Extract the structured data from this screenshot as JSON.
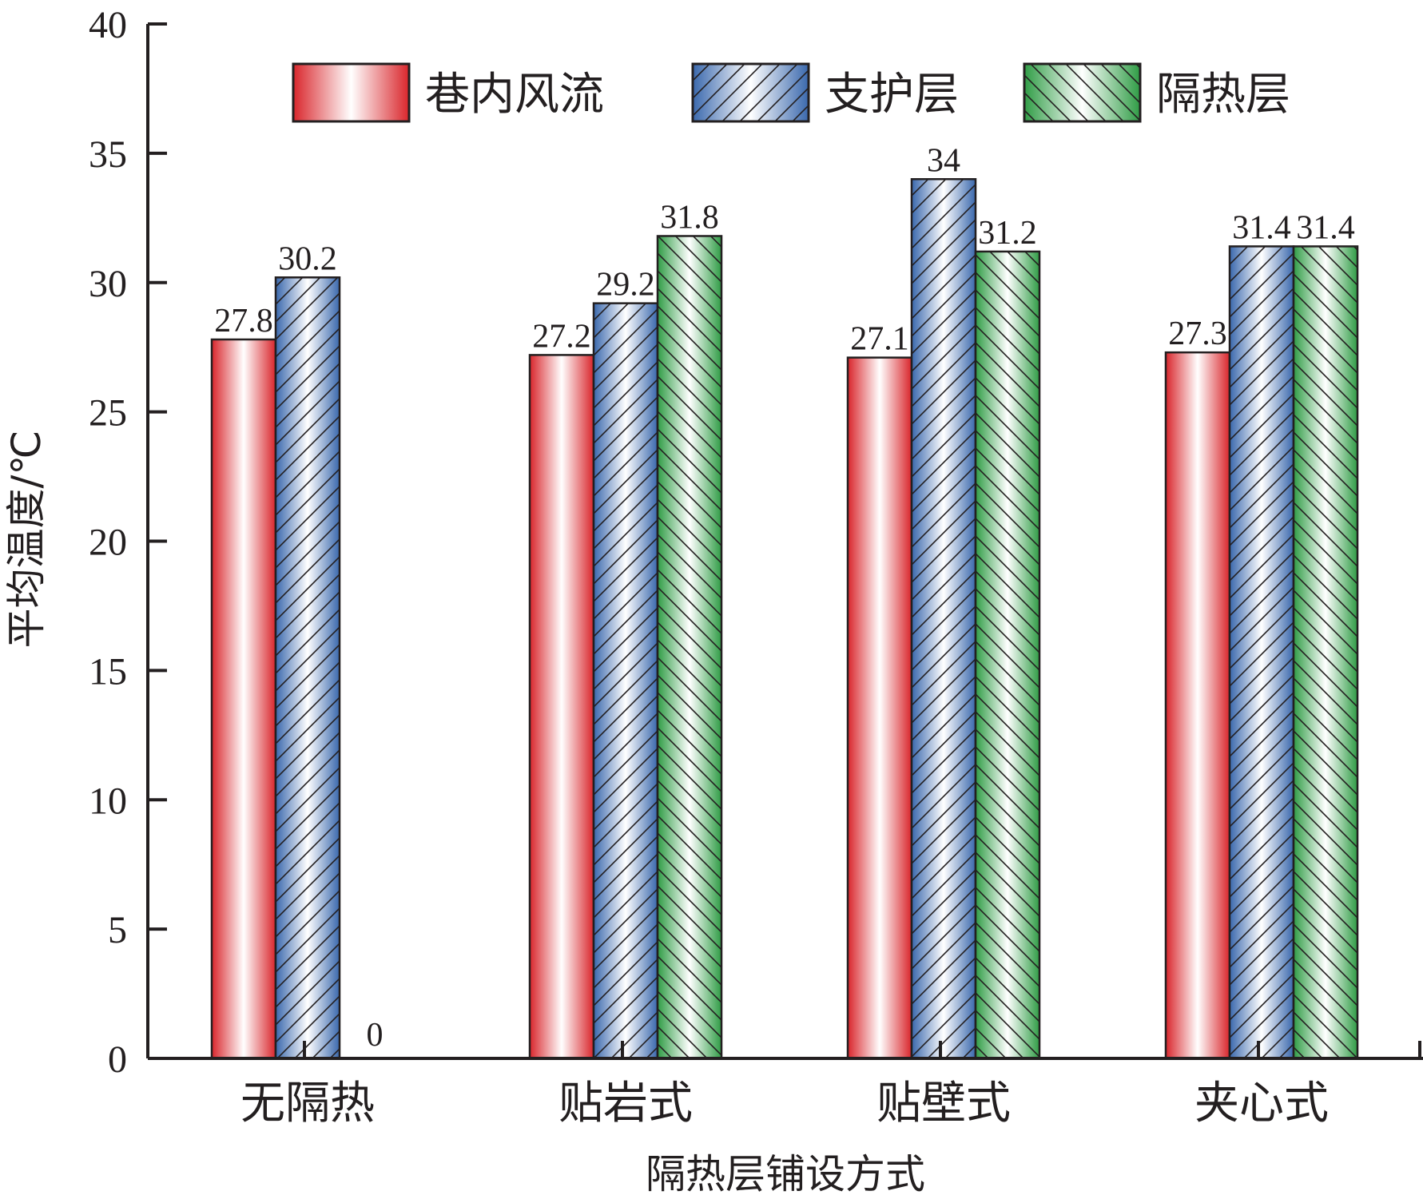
{
  "chart_data": {
    "type": "bar",
    "categories": [
      "无隔热",
      "贴岩式",
      "贴壁式",
      "夹心式"
    ],
    "series": [
      {
        "name": "巷内风流",
        "values": [
          27.8,
          27.2,
          27.1,
          27.3
        ],
        "color": "#d9252b",
        "pattern": "none"
      },
      {
        "name": "支护层",
        "values": [
          30.2,
          29.2,
          34,
          31.4
        ],
        "color": "#3a68ad",
        "pattern": "forward-hatch"
      },
      {
        "name": "隔热层",
        "values": [
          0,
          31.8,
          31.2,
          31.4
        ],
        "color": "#2f9c45",
        "pattern": "backward-hatch"
      }
    ],
    "xlabel": "隔热层铺设方式",
    "ylabel": "平均温度/℃",
    "ylim": [
      0,
      40
    ],
    "yticks": [
      0,
      5,
      10,
      15,
      20,
      25,
      30,
      35,
      40
    ],
    "data_labels": [
      [
        "27.8",
        "27.2",
        "27.1",
        "27.3"
      ],
      [
        "30.2",
        "29.2",
        "34",
        "31.4"
      ],
      [
        "0",
        "31.8",
        "31.2",
        "31.4"
      ]
    ],
    "grid": false,
    "legend_position": "top"
  }
}
